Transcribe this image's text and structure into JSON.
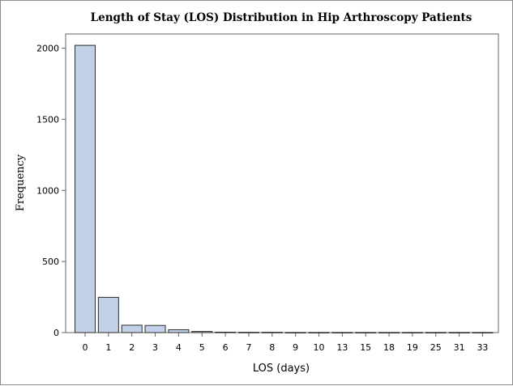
{
  "chart_data": {
    "type": "bar",
    "title": "Length of Stay (LOS) Distribution in Hip Arthroscopy Patients",
    "xlabel": "LOS (days)",
    "ylabel": "Frequency",
    "categories": [
      "0",
      "1",
      "2",
      "3",
      "4",
      "5",
      "6",
      "7",
      "8",
      "9",
      "10",
      "13",
      "15",
      "18",
      "19",
      "25",
      "31",
      "33"
    ],
    "values": [
      2020,
      248,
      52,
      50,
      20,
      8,
      3,
      2,
      2,
      1,
      1,
      1,
      1,
      1,
      1,
      1,
      1,
      1
    ],
    "ylim": [
      0,
      2100
    ],
    "yticks": [
      "0",
      "500",
      "1000",
      "1500",
      "2000"
    ],
    "grid": false,
    "colors": {
      "bar_fill": "#c1d1e8",
      "bar_stroke": "#2b2b2b"
    }
  }
}
